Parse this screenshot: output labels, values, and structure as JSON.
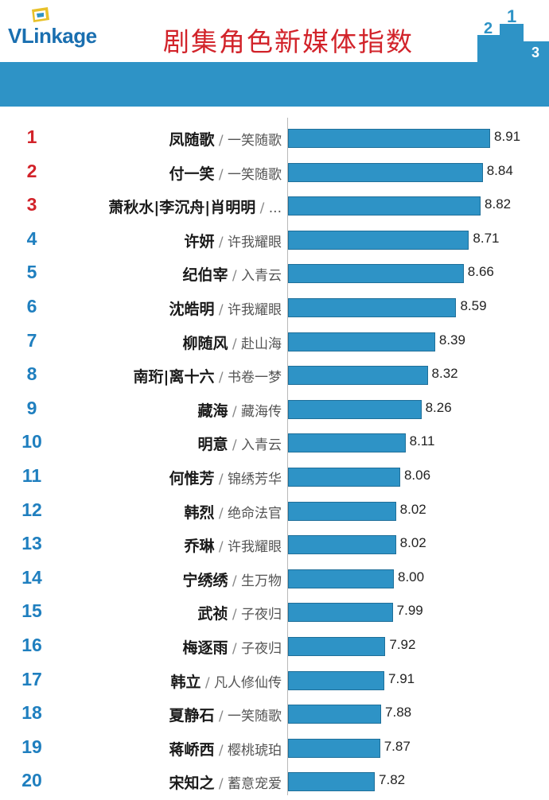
{
  "header": {
    "logo_prefix": "VLink",
    "logo_suffix": "age",
    "title": "剧集角色新媒体指数",
    "podium_labels": [
      "2",
      "1",
      "3"
    ]
  },
  "colors": {
    "bar": "#2e93c6",
    "rank_top": "#d2232a",
    "rank_rest": "#1f7fbf",
    "title": "#d2232a"
  },
  "chart_data": {
    "type": "bar",
    "orientation": "horizontal",
    "title": "剧集角色新媒体指数",
    "xlim": [
      7.0,
      9.0
    ],
    "rows": [
      {
        "rank": "1",
        "name": "凤随歌",
        "show": "一笑随歌",
        "value": 8.91,
        "value_label": "8.91"
      },
      {
        "rank": "2",
        "name": "付一笑",
        "show": "一笑随歌",
        "value": 8.84,
        "value_label": "8.84"
      },
      {
        "rank": "3",
        "name": "萧秋水|李沉舟|肖明明",
        "show": "...",
        "value": 8.82,
        "value_label": "8.82"
      },
      {
        "rank": "4",
        "name": "许妍",
        "show": "许我耀眼",
        "value": 8.71,
        "value_label": "8.71"
      },
      {
        "rank": "5",
        "name": "纪伯宰",
        "show": "入青云",
        "value": 8.66,
        "value_label": "8.66"
      },
      {
        "rank": "6",
        "name": "沈皓明",
        "show": "许我耀眼",
        "value": 8.59,
        "value_label": "8.59"
      },
      {
        "rank": "7",
        "name": "柳随风",
        "show": "赴山海",
        "value": 8.39,
        "value_label": "8.39"
      },
      {
        "rank": "8",
        "name": "南珩|离十六",
        "show": "书卷一梦",
        "value": 8.32,
        "value_label": "8.32"
      },
      {
        "rank": "9",
        "name": "藏海",
        "show": "藏海传",
        "value": 8.26,
        "value_label": "8.26"
      },
      {
        "rank": "10",
        "name": "明意",
        "show": "入青云",
        "value": 8.11,
        "value_label": "8.11"
      },
      {
        "rank": "11",
        "name": "何惟芳",
        "show": "锦绣芳华",
        "value": 8.06,
        "value_label": "8.06"
      },
      {
        "rank": "12",
        "name": "韩烈",
        "show": "绝命法官",
        "value": 8.02,
        "value_label": "8.02"
      },
      {
        "rank": "13",
        "name": "乔琳",
        "show": "许我耀眼",
        "value": 8.02,
        "value_label": "8.02"
      },
      {
        "rank": "14",
        "name": "宁绣绣",
        "show": "生万物",
        "value": 8.0,
        "value_label": "8.00"
      },
      {
        "rank": "15",
        "name": "武祯",
        "show": "子夜归",
        "value": 7.99,
        "value_label": "7.99"
      },
      {
        "rank": "16",
        "name": "梅逐雨",
        "show": "子夜归",
        "value": 7.92,
        "value_label": "7.92"
      },
      {
        "rank": "17",
        "name": "韩立",
        "show": "凡人修仙传",
        "value": 7.91,
        "value_label": "7.91"
      },
      {
        "rank": "18",
        "name": "夏静石",
        "show": "一笑随歌",
        "value": 7.88,
        "value_label": "7.88"
      },
      {
        "rank": "19",
        "name": "蒋峤西",
        "show": "樱桃琥珀",
        "value": 7.87,
        "value_label": "7.87"
      },
      {
        "rank": "20",
        "name": "宋知之",
        "show": "蓄意宠爱",
        "value": 7.82,
        "value_label": "7.82"
      }
    ]
  }
}
